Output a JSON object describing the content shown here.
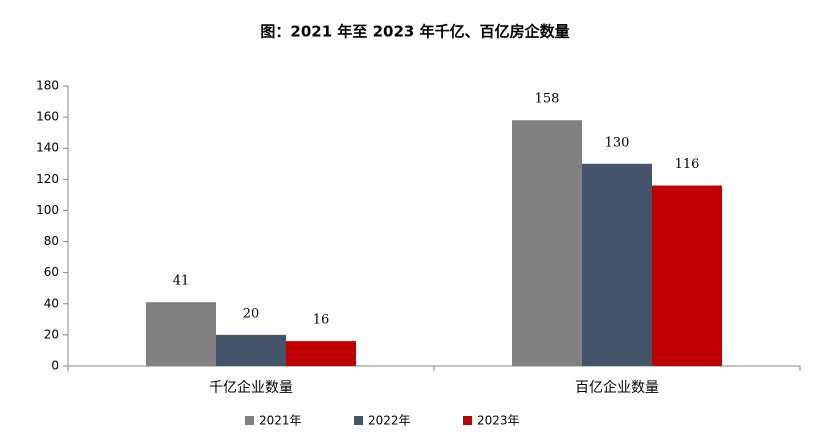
{
  "chart_data": {
    "type": "bar",
    "title": "图：2021 年至 2023 年千亿、百亿房企数量",
    "categories": [
      "千亿企业数量",
      "百亿企业数量"
    ],
    "series": [
      {
        "name": "2021年",
        "color": "#808080",
        "values": [
          41,
          158
        ]
      },
      {
        "name": "2022年",
        "color": "#44546a",
        "values": [
          20,
          130
        ]
      },
      {
        "name": "2023年",
        "color": "#c00000",
        "values": [
          16,
          116
        ]
      }
    ],
    "ylim": [
      0,
      180
    ],
    "yticks": [
      0,
      20,
      40,
      60,
      80,
      100,
      120,
      140,
      160,
      180
    ]
  }
}
